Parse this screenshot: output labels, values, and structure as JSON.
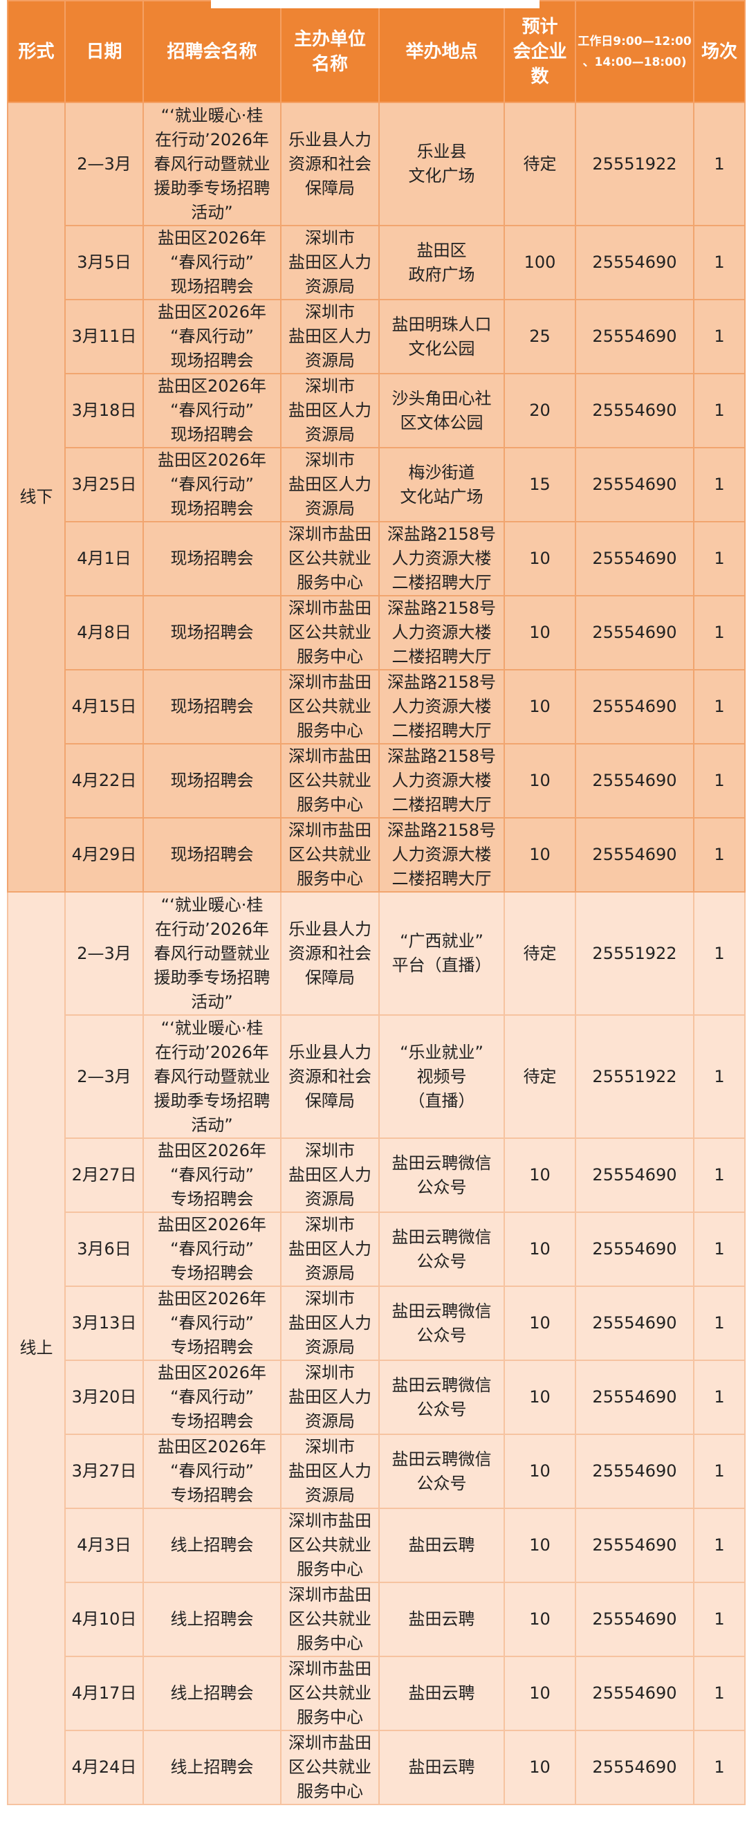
{
  "colors": {
    "header": "#ee8433",
    "offline_row": "#f9c9a6",
    "online_row": "#fde3d2"
  },
  "headers": [
    "形式",
    "日期",
    "招聘会名称",
    "主办单位\n名称",
    "举办地点",
    "预计\n会企业\n数",
    "工作日9:00—12:00\n、14:00—18:00)",
    "场次"
  ],
  "groups": [
    {
      "label": "线下",
      "rows": [
        {
          "date": "2—3月",
          "name": "“‘就业暖心·桂\n在行动’2026年\n春风行动暨就业\n援助季专场招聘\n活动”",
          "org": "乐业县人力\n资源和社会\n保障局",
          "place": "乐业县\n文化广场",
          "count": "待定",
          "phone": "25551922",
          "sessions": "1",
          "tall": true
        },
        {
          "date": "3月5日",
          "name": "盐田区2026年\n“春风行动”\n现场招聘会",
          "org": "深圳市\n盐田区人力\n资源局",
          "place": "盐田区\n政府广场",
          "count": "100",
          "phone": "25554690",
          "sessions": "1"
        },
        {
          "date": "3月11日",
          "name": "盐田区2026年\n“春风行动”\n现场招聘会",
          "org": "深圳市\n盐田区人力\n资源局",
          "place": "盐田明珠人口\n文化公园",
          "count": "25",
          "phone": "25554690",
          "sessions": "1"
        },
        {
          "date": "3月18日",
          "name": "盐田区2026年\n“春风行动”\n现场招聘会",
          "org": "深圳市\n盐田区人力\n资源局",
          "place": "沙头角田心社\n区文体公园",
          "count": "20",
          "phone": "25554690",
          "sessions": "1"
        },
        {
          "date": "3月25日",
          "name": "盐田区2026年\n“春风行动”\n现场招聘会",
          "org": "深圳市\n盐田区人力\n资源局",
          "place": "梅沙街道\n文化站广场",
          "count": "15",
          "phone": "25554690",
          "sessions": "1"
        },
        {
          "date": "4月1日",
          "name": "现场招聘会",
          "org": "深圳市盐田\n区公共就业\n服务中心",
          "place": "深盐路2158号\n人力资源大楼\n二楼招聘大厅",
          "count": "10",
          "phone": "25554690",
          "sessions": "1"
        },
        {
          "date": "4月8日",
          "name": "现场招聘会",
          "org": "深圳市盐田\n区公共就业\n服务中心",
          "place": "深盐路2158号\n人力资源大楼\n二楼招聘大厅",
          "count": "10",
          "phone": "25554690",
          "sessions": "1"
        },
        {
          "date": "4月15日",
          "name": "现场招聘会",
          "org": "深圳市盐田\n区公共就业\n服务中心",
          "place": "深盐路2158号\n人力资源大楼\n二楼招聘大厅",
          "count": "10",
          "phone": "25554690",
          "sessions": "1"
        },
        {
          "date": "4月22日",
          "name": "现场招聘会",
          "org": "深圳市盐田\n区公共就业\n服务中心",
          "place": "深盐路2158号\n人力资源大楼\n二楼招聘大厅",
          "count": "10",
          "phone": "25554690",
          "sessions": "1"
        },
        {
          "date": "4月29日",
          "name": "现场招聘会",
          "org": "深圳市盐田\n区公共就业\n服务中心",
          "place": "深盐路2158号\n人力资源大楼\n二楼招聘大厅",
          "count": "10",
          "phone": "25554690",
          "sessions": "1"
        }
      ]
    },
    {
      "label": "线上",
      "rows": [
        {
          "date": "2—3月",
          "name": "“‘就业暖心·桂\n在行动’2026年\n春风行动暨就业\n援助季专场招聘\n活动”",
          "org": "乐业县人力\n资源和社会\n保障局",
          "place": "“广西就业”\n平台（直播）",
          "count": "待定",
          "phone": "25551922",
          "sessions": "1",
          "tall": true
        },
        {
          "date": "2—3月",
          "name": "“‘就业暖心·桂\n在行动’2026年\n春风行动暨就业\n援助季专场招聘\n活动”",
          "org": "乐业县人力\n资源和社会\n保障局",
          "place": "“乐业就业”\n视频号\n（直播）",
          "count": "待定",
          "phone": "25551922",
          "sessions": "1",
          "tall": true
        },
        {
          "date": "2月27日",
          "name": "盐田区2026年\n“春风行动”\n专场招聘会",
          "org": "深圳市\n盐田区人力\n资源局",
          "place": "盐田云聘微信\n公众号",
          "count": "10",
          "phone": "25554690",
          "sessions": "1"
        },
        {
          "date": "3月6日",
          "name": "盐田区2026年\n“春风行动”\n专场招聘会",
          "org": "深圳市\n盐田区人力\n资源局",
          "place": "盐田云聘微信\n公众号",
          "count": "10",
          "phone": "25554690",
          "sessions": "1"
        },
        {
          "date": "3月13日",
          "name": "盐田区2026年\n“春风行动”\n专场招聘会",
          "org": "深圳市\n盐田区人力\n资源局",
          "place": "盐田云聘微信\n公众号",
          "count": "10",
          "phone": "25554690",
          "sessions": "1"
        },
        {
          "date": "3月20日",
          "name": "盐田区2026年\n“春风行动”\n专场招聘会",
          "org": "深圳市\n盐田区人力\n资源局",
          "place": "盐田云聘微信\n公众号",
          "count": "10",
          "phone": "25554690",
          "sessions": "1"
        },
        {
          "date": "3月27日",
          "name": "盐田区2026年\n“春风行动”\n专场招聘会",
          "org": "深圳市\n盐田区人力\n资源局",
          "place": "盐田云聘微信\n公众号",
          "count": "10",
          "phone": "25554690",
          "sessions": "1"
        },
        {
          "date": "4月3日",
          "name": "线上招聘会",
          "org": "深圳市盐田\n区公共就业\n服务中心",
          "place": "盐田云聘",
          "count": "10",
          "phone": "25554690",
          "sessions": "1"
        },
        {
          "date": "4月10日",
          "name": "线上招聘会",
          "org": "深圳市盐田\n区公共就业\n服务中心",
          "place": "盐田云聘",
          "count": "10",
          "phone": "25554690",
          "sessions": "1"
        },
        {
          "date": "4月17日",
          "name": "线上招聘会",
          "org": "深圳市盐田\n区公共就业\n服务中心",
          "place": "盐田云聘",
          "count": "10",
          "phone": "25554690",
          "sessions": "1"
        },
        {
          "date": "4月24日",
          "name": "线上招聘会",
          "org": "深圳市盐田\n区公共就业\n服务中心",
          "place": "盐田云聘",
          "count": "10",
          "phone": "25554690",
          "sessions": "1"
        }
      ]
    }
  ]
}
